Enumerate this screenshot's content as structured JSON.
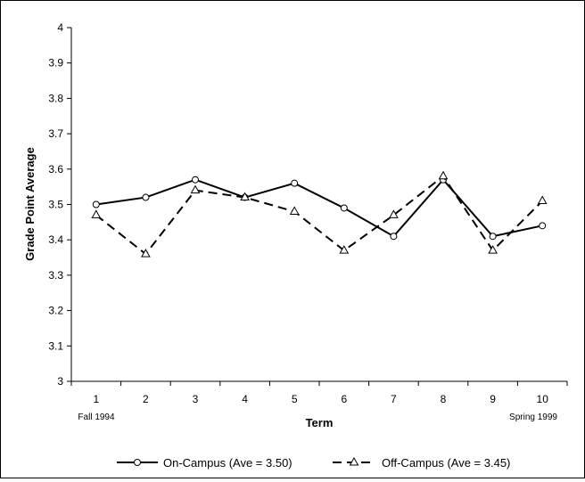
{
  "chart_data": {
    "type": "line",
    "xlabel": "Term",
    "ylabel": "Grade Point Average",
    "ylim": [
      3,
      4
    ],
    "yticks": [
      "3",
      "3.1",
      "3.2",
      "3.3",
      "3.4",
      "3.5",
      "3.6",
      "3.7",
      "3.8",
      "3.9",
      "4"
    ],
    "categories": [
      "1",
      "2",
      "3",
      "4",
      "5",
      "6",
      "7",
      "8",
      "9",
      "10"
    ],
    "x_sublabels": {
      "first": "Fall 1994",
      "last": "Spring 1999"
    },
    "grid": false,
    "legend_position": "bottom",
    "series": [
      {
        "name": "On-Campus (Ave = 3.50)",
        "marker": "circle",
        "line_style": "solid",
        "color": "#000000",
        "values": [
          3.5,
          3.52,
          3.57,
          3.52,
          3.56,
          3.49,
          3.41,
          3.57,
          3.41,
          3.44
        ]
      },
      {
        "name": "Off-Campus (Ave = 3.45)",
        "marker": "triangle",
        "line_style": "dashed",
        "color": "#000000",
        "values": [
          3.47,
          3.36,
          3.54,
          3.52,
          3.48,
          3.37,
          3.47,
          3.58,
          3.37,
          3.51
        ]
      }
    ]
  }
}
